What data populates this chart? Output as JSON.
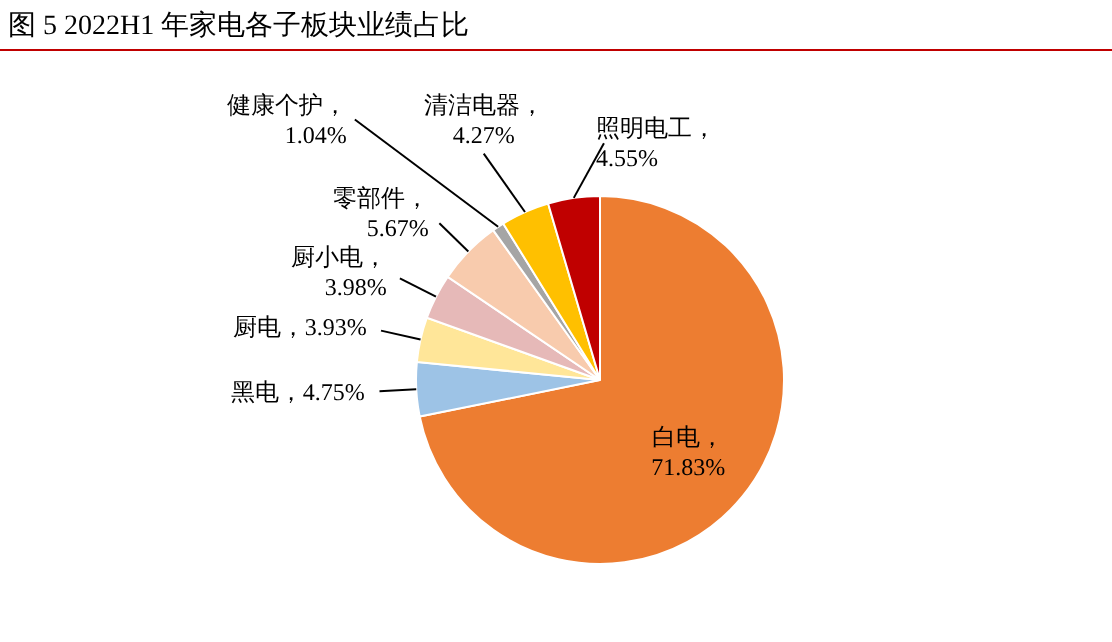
{
  "chart_data": {
    "type": "pie",
    "title": "图 5 2022H1 年家电各子板块业绩占比",
    "categories": [
      "白电",
      "黑电",
      "厨电",
      "厨小电",
      "零部件",
      "健康个护",
      "清洁电器",
      "照明电工"
    ],
    "values": [
      71.83,
      4.75,
      3.93,
      3.98,
      5.67,
      1.04,
      4.27,
      4.55
    ],
    "colors": [
      "#ed7d31",
      "#9dc3e6",
      "#ffe699",
      "#e6b9b8",
      "#f8cbad",
      "#a5a5a5",
      "#ffc000",
      "#c00000"
    ],
    "value_labels": [
      "，71.83%",
      "，4.75%",
      "，3.93%",
      "，3.98%",
      "，5.67%",
      "，1.04%",
      "，4.27%",
      "，4.55%"
    ]
  }
}
